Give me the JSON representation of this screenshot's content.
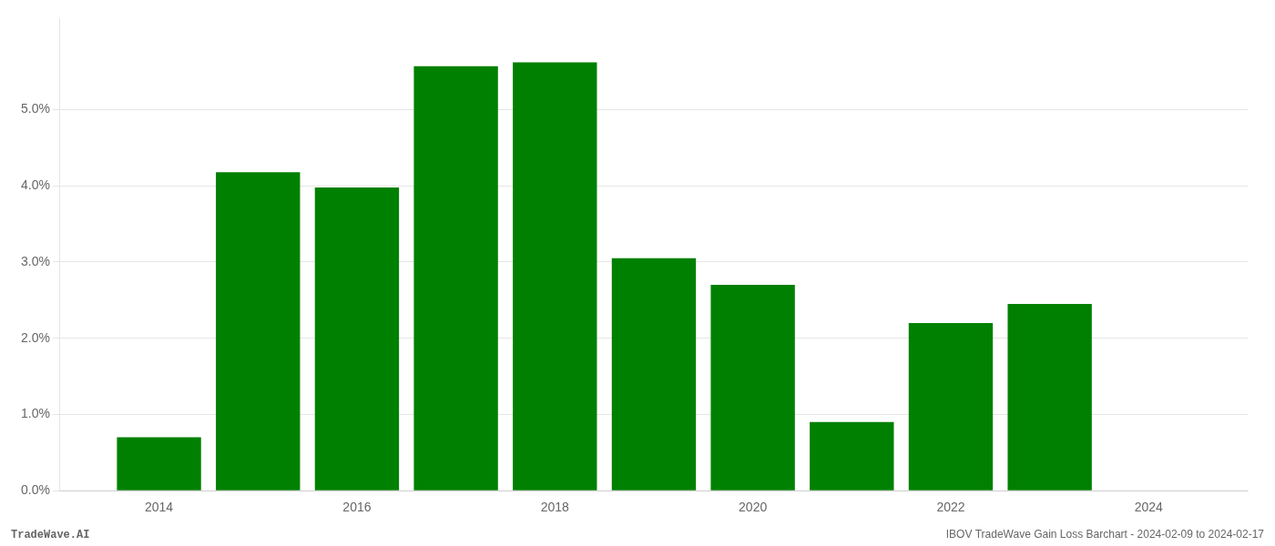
{
  "chart_data": {
    "type": "bar",
    "x": [
      2014,
      2015,
      2016,
      2017,
      2018,
      2019,
      2020,
      2021,
      2022,
      2023
    ],
    "values": [
      0.007,
      0.0418,
      0.0398,
      0.0557,
      0.0562,
      0.0305,
      0.027,
      0.009,
      0.022,
      0.0245
    ],
    "color": "#008000",
    "xlim": [
      2013.0,
      2025.0
    ],
    "xticks": [
      2014,
      2016,
      2018,
      2020,
      2022,
      2024
    ],
    "ylim": [
      0,
      0.062
    ],
    "yticks": [
      {
        "value": 0.0,
        "label": "0.0%"
      },
      {
        "value": 0.01,
        "label": "1.0%"
      },
      {
        "value": 0.02,
        "label": "2.0%"
      },
      {
        "value": 0.03,
        "label": "3.0%"
      },
      {
        "value": 0.04,
        "label": "4.0%"
      },
      {
        "value": 0.05,
        "label": "5.0%"
      }
    ],
    "grid": true,
    "annotations": [
      "TradeWave.AI",
      "IBOV TradeWave Gain Loss Barchart - 2024-02-09 to 2024-02-17"
    ]
  }
}
